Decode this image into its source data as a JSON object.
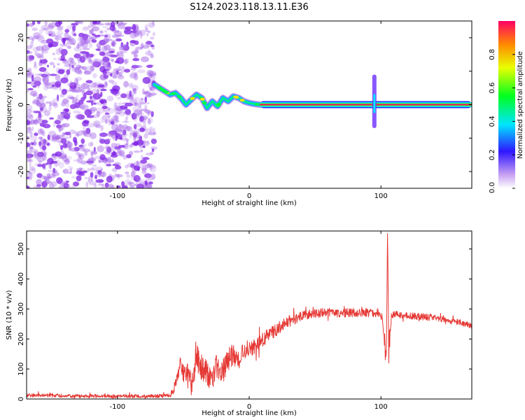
{
  "page": {
    "title": "S124.2023.118.13.11.E36"
  },
  "colors": {
    "line": "#e53935",
    "frame": "#000000",
    "speckle": "#a667ea",
    "speckle_dark": "#7f22e6",
    "background": "#ffffff"
  },
  "chart_data": [
    {
      "type": "heatmap",
      "title": "S124.2023.118.13.11.E36",
      "xlabel": "Height of straight line (km)",
      "ylabel": "Frequency (Hz)",
      "xlim": [
        -169,
        169
      ],
      "ylim": [
        -25,
        25
      ],
      "x_ticks": [
        -100,
        0,
        100
      ],
      "x_tick_labels": [
        "-100",
        "0",
        "100"
      ],
      "y_ticks": [
        -20,
        -10,
        0,
        10,
        20
      ],
      "y_tick_labels": [
        "-20",
        "-10",
        "0",
        "10",
        "20"
      ],
      "colorbar": {
        "label": "Normalized spectral amplitude",
        "ticks": [
          0.0,
          0.2,
          0.4,
          0.6,
          0.8
        ],
        "tick_labels": [
          "0.0",
          "0.2",
          "0.4",
          "0.6",
          "0.8"
        ],
        "range": [
          0,
          1
        ],
        "colormap": "rainbow"
      },
      "noise_region": [
        -169,
        -72
      ],
      "ridge": {
        "x": [
          -72,
          -68,
          -64,
          -60,
          -56,
          -52,
          -48,
          -44,
          -40,
          -36,
          -32,
          -28,
          -24,
          -20,
          -16,
          -12,
          -8,
          -4,
          0,
          4,
          8
        ],
        "y": [
          6,
          5,
          4,
          3,
          3.5,
          2,
          0,
          1.5,
          3,
          2,
          -1,
          1,
          -0.5,
          2,
          1,
          2.5,
          2,
          1,
          0.5,
          0.2,
          0
        ]
      },
      "tone": {
        "x_start": 8,
        "x_end": 169,
        "frequency": 0
      },
      "spike": {
        "x": 95,
        "y_range": [
          -7,
          9
        ]
      },
      "grid": false
    },
    {
      "type": "line",
      "xlabel": "Height of straight line (km)",
      "ylabel": "SNR (10 * v/v)",
      "xlim": [
        -169,
        169
      ],
      "ylim": [
        0,
        560
      ],
      "x_ticks": [
        -100,
        0,
        100
      ],
      "x_tick_labels": [
        "-100",
        "0",
        "100"
      ],
      "y_ticks": [
        0,
        100,
        200,
        300,
        400,
        500
      ],
      "y_tick_labels": [
        "0",
        "100",
        "200",
        "300",
        "400",
        "500"
      ],
      "series": [
        {
          "x": [
            -169,
            -150,
            -130,
            -110,
            -90,
            -70,
            -60,
            -56,
            -52,
            -48,
            -44,
            -40,
            -36,
            -32,
            -28,
            -24,
            -20,
            -16,
            -12,
            -8,
            -4,
            0,
            5,
            10,
            15,
            20,
            25,
            30,
            35,
            40,
            45,
            50,
            55,
            60,
            70,
            80,
            90,
            95,
            100,
            102,
            104,
            105,
            106,
            108,
            110,
            120,
            130,
            140,
            150,
            160,
            169
          ],
          "values": [
            12,
            12,
            10,
            10,
            9,
            10,
            12,
            45,
            110,
            80,
            55,
            140,
            95,
            85,
            75,
            120,
            90,
            130,
            150,
            130,
            160,
            170,
            175,
            195,
            215,
            230,
            245,
            258,
            268,
            275,
            282,
            285,
            287,
            288,
            287,
            288,
            289,
            288,
            285,
            240,
            80,
            560,
            150,
            280,
            282,
            278,
            275,
            270,
            262,
            255,
            245
          ],
          "noise_amplitude": [
            6,
            6,
            6,
            6,
            6,
            6,
            6,
            20,
            40,
            45,
            45,
            50,
            50,
            45,
            45,
            45,
            40,
            40,
            35,
            35,
            30,
            30,
            25,
            25,
            22,
            22,
            20,
            18,
            18,
            16,
            15,
            15,
            15,
            15,
            15,
            15,
            15,
            15,
            15,
            40,
            60,
            0,
            60,
            12,
            12,
            12,
            12,
            10,
            10,
            10,
            10
          ]
        }
      ],
      "grid": false
    }
  ]
}
